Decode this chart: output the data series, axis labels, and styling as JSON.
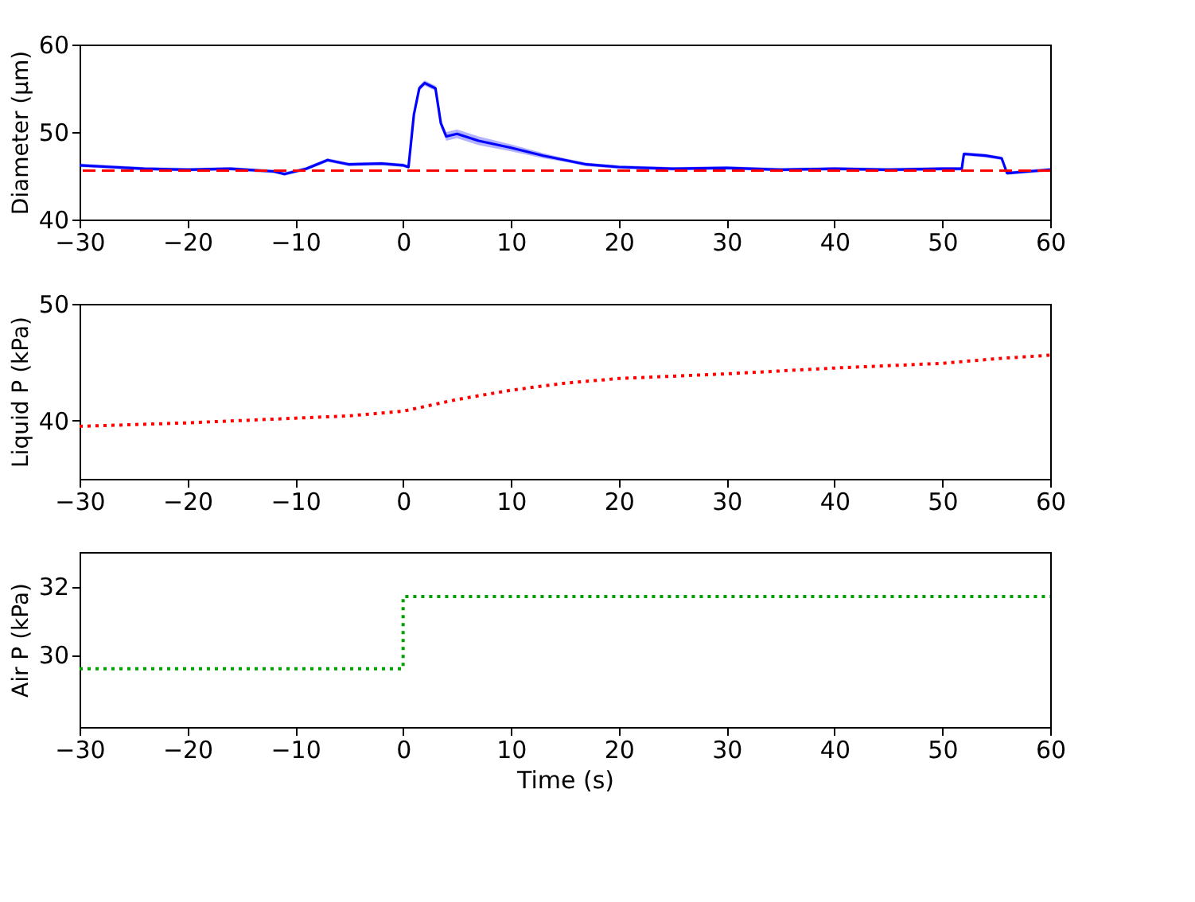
{
  "chart_data": [
    {
      "type": "line",
      "ylabel": "Diameter (μm)",
      "xlim": [
        -30,
        60
      ],
      "xticks": [
        -30,
        -20,
        -10,
        0,
        10,
        20,
        30,
        40,
        50,
        60
      ],
      "ylim": [
        40,
        60
      ],
      "yticks": [
        40,
        50,
        60
      ],
      "grid": false,
      "line_style": "solid",
      "series": [
        {
          "color": "#0000ff",
          "x": [
            -30,
            -27,
            -24,
            -20,
            -16,
            -12,
            -11,
            -9,
            -7,
            -5,
            -2,
            0,
            0.5,
            1,
            1.5,
            2,
            2.5,
            3,
            3.5,
            4,
            5,
            7,
            10,
            13,
            15,
            17,
            20,
            25,
            30,
            35,
            40,
            45,
            50,
            51.8,
            52,
            54,
            55.5,
            56,
            58,
            60
          ],
          "values": [
            46.2,
            46.0,
            45.8,
            45.7,
            45.8,
            45.5,
            45.2,
            45.8,
            46.8,
            46.3,
            46.4,
            46.2,
            46.0,
            52.0,
            55.0,
            55.6,
            55.3,
            55.0,
            51.0,
            49.5,
            49.8,
            49.0,
            48.2,
            47.3,
            46.8,
            46.3,
            46.0,
            45.8,
            45.9,
            45.7,
            45.8,
            45.7,
            45.8,
            45.8,
            47.5,
            47.3,
            47.0,
            45.3,
            45.5,
            45.7
          ],
          "lower": [
            46.0,
            45.8,
            45.6,
            45.5,
            45.6,
            45.3,
            45.0,
            45.6,
            46.6,
            46.1,
            46.2,
            46.0,
            45.8,
            51.7,
            54.7,
            55.3,
            55.0,
            54.7,
            50.6,
            49.0,
            49.3,
            48.5,
            47.8,
            47.0,
            46.6,
            46.1,
            45.8,
            45.6,
            45.7,
            45.5,
            45.6,
            45.5,
            45.6,
            45.6,
            47.3,
            47.1,
            46.8,
            45.1,
            45.3,
            45.5
          ],
          "upper": [
            46.4,
            46.2,
            46.0,
            45.9,
            46.0,
            45.7,
            45.4,
            46.0,
            47.0,
            46.5,
            46.6,
            46.4,
            46.2,
            52.3,
            55.3,
            55.9,
            55.6,
            55.3,
            51.4,
            50.0,
            50.3,
            49.5,
            48.6,
            47.6,
            47.0,
            46.5,
            46.2,
            46.0,
            46.1,
            45.9,
            46.0,
            45.9,
            46.0,
            46.0,
            47.7,
            47.5,
            47.2,
            45.5,
            45.7,
            45.9
          ]
        }
      ],
      "ref_lines": [
        {
          "axis": "y",
          "value": 45.6,
          "color": "#ff0000",
          "line_style": "dashed"
        }
      ]
    },
    {
      "type": "line",
      "ylabel": "Liquid P (kPa)",
      "xlim": [
        -30,
        60
      ],
      "xticks": [
        -30,
        -20,
        -10,
        0,
        10,
        20,
        30,
        40,
        50,
        60
      ],
      "ylim": [
        35,
        50
      ],
      "yticks": [
        40,
        50
      ],
      "grid": false,
      "line_style": "dotted",
      "series": [
        {
          "color": "#ff0000",
          "x": [
            -30,
            -20,
            -10,
            -5,
            0,
            1,
            5,
            10,
            15,
            20,
            30,
            40,
            50,
            55,
            60
          ],
          "values": [
            39.5,
            39.8,
            40.2,
            40.4,
            40.8,
            41.0,
            41.8,
            42.6,
            43.2,
            43.6,
            44.0,
            44.5,
            44.9,
            45.3,
            45.6
          ]
        }
      ]
    },
    {
      "type": "step",
      "xlabel": "Time (s)",
      "ylabel": "Air P (kPa)",
      "xlim": [
        -30,
        60
      ],
      "xticks": [
        -30,
        -20,
        -10,
        0,
        10,
        20,
        30,
        40,
        50,
        60
      ],
      "ylim": [
        27.9,
        33
      ],
      "yticks": [
        30,
        32
      ],
      "grid": false,
      "line_style": "dotted",
      "series": [
        {
          "color": "#00a000",
          "x": [
            -30,
            0,
            60
          ],
          "values": [
            29.6,
            31.7,
            31.7
          ]
        }
      ]
    }
  ]
}
